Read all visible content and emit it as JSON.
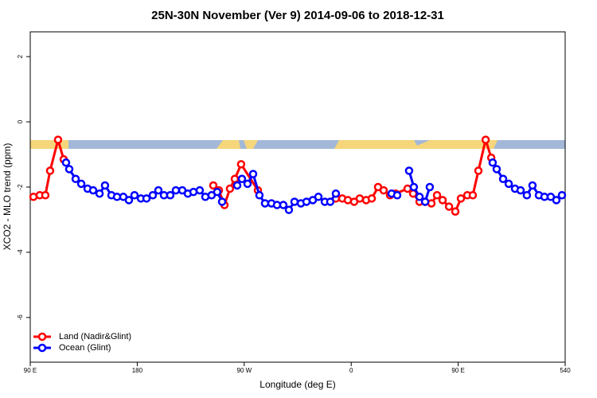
{
  "chart_data": {
    "type": "line",
    "title": "25N-30N November (Ver 9)   2014-09-06 to 2018-12-31",
    "x_label": "Longitude (deg E)",
    "y_label": "XCO2 - MLO trend (ppm)",
    "xlim": [
      90,
      540
    ],
    "ylim": [
      -7.37,
      2.76
    ],
    "xticks": [
      {
        "value": 90,
        "label": "90 E"
      },
      180,
      {
        "value": 270,
        "label": "90 W"
      },
      {
        "value": 360,
        "label": "0"
      },
      {
        "value": 450,
        "label": "90 E"
      },
      540
    ],
    "yticks": [
      2,
      0,
      -2,
      -4,
      -6
    ],
    "legend": "bottom-left",
    "series": [
      {
        "name": "Land (Nadir&Glint)",
        "color": "#ff0000",
        "x": [
          92.7,
          98,
          102.7,
          106.7,
          113.4,
          118.1,
          null,
          244,
          248.7,
          253.4,
          258,
          262.1,
          267.4,
          281.5,
          null,
          347.1,
          352.5,
          357.2,
          362.5,
          367.2,
          372.6,
          377.3,
          382.6,
          387.3,
          392.7,
          397.4,
          407.4,
          412.1,
          417.5,
          422.2,
          427.5,
          432.2,
          436.9,
          442.3,
          447.6,
          452.3,
          457.7,
          462.3,
          467,
          473.1,
          477.8
        ],
        "values": [
          -2.3,
          -2.25,
          -2.25,
          -1.5,
          -0.55,
          -1.15,
          null,
          -1.95,
          -2.1,
          -2.55,
          -2.05,
          -1.75,
          -1.3,
          -2.1,
          null,
          -2.35,
          -2.35,
          -2.4,
          -2.45,
          -2.35,
          -2.4,
          -2.35,
          -2.0,
          -2.1,
          -2.25,
          -2.2,
          -2.05,
          -2.2,
          -2.45,
          -2.45,
          -2.5,
          -2.25,
          -2.4,
          -2.6,
          -2.75,
          -2.35,
          -2.25,
          -2.25,
          -1.5,
          -0.55,
          -1.1
        ]
      },
      {
        "name": "Ocean (Glint)",
        "color": "#0000ff",
        "x": [
          120.1,
          122.8,
          128.2,
          132.9,
          138.2,
          142.9,
          148.3,
          152.9,
          158.3,
          163,
          168.3,
          173,
          177.7,
          183.1,
          187.8,
          193.1,
          197.8,
          202.5,
          207.8,
          212.5,
          217.9,
          222.6,
          227.3,
          232.6,
          237.3,
          242.6,
          247.3,
          251.4,
          null,
          264.1,
          268.1,
          272.8,
          277.5,
          282.8,
          287.5,
          292.9,
          297.6,
          302.9,
          307.6,
          312.3,
          317.7,
          322.4,
          327.7,
          332.4,
          337.8,
          342.4,
          347.1,
          null,
          394,
          398.7,
          null,
          408.7,
          412.7,
          417.5,
          422.2,
          426.1,
          null,
          479,
          482.4,
          487.8,
          492.5,
          497.8,
          502.5,
          507.8,
          512.5,
          517.9,
          522.6,
          527.9,
          532.6,
          537.3
        ],
        "values": [
          -1.25,
          -1.45,
          -1.75,
          -1.9,
          -2.05,
          -2.1,
          -2.2,
          -1.95,
          -2.25,
          -2.3,
          -2.3,
          -2.4,
          -2.25,
          -2.35,
          -2.35,
          -2.25,
          -2.1,
          -2.25,
          -2.25,
          -2.1,
          -2.1,
          -2.2,
          -2.15,
          -2.1,
          -2.3,
          -2.25,
          -2.15,
          -2.45,
          null,
          -1.95,
          -1.75,
          -1.9,
          -1.6,
          -2.25,
          -2.5,
          -2.5,
          -2.55,
          -2.55,
          -2.7,
          -2.45,
          -2.5,
          -2.45,
          -2.4,
          -2.3,
          -2.45,
          -2.45,
          -2.2,
          null,
          -2.2,
          -2.25,
          null,
          -1.5,
          -2.0,
          -2.3,
          -2.45,
          -2.0,
          null,
          -1.25,
          -1.45,
          -1.75,
          -1.9,
          -2.05,
          -2.1,
          -2.25,
          -1.95,
          -2.25,
          -2.3,
          -2.3,
          -2.4,
          -2.25
        ]
      }
    ]
  }
}
